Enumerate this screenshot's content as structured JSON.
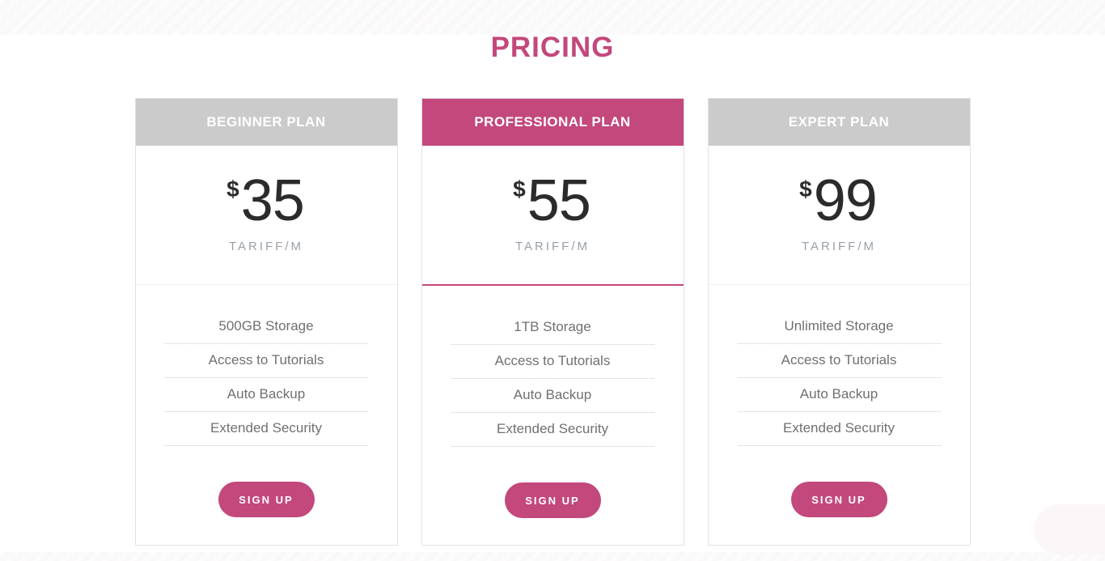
{
  "page": {
    "title": "PRICING",
    "accent_color": "#c3487c",
    "header_gray": "#cbcbcb"
  },
  "plans": [
    {
      "name": "BEGINNER PLAN",
      "currency": "$",
      "price": "35",
      "period": "TARIFF/M",
      "featured": false,
      "features": [
        "500GB Storage",
        "Access to Tutorials",
        "Auto Backup",
        "Extended Security"
      ],
      "cta": "SIGN UP"
    },
    {
      "name": "PROFESSIONAL PLAN",
      "currency": "$",
      "price": "55",
      "period": "TARIFF/M",
      "featured": true,
      "features": [
        "1TB Storage",
        "Access to Tutorials",
        "Auto Backup",
        "Extended Security"
      ],
      "cta": "SIGN UP"
    },
    {
      "name": "EXPERT PLAN",
      "currency": "$",
      "price": "99",
      "period": "TARIFF/M",
      "featured": false,
      "features": [
        "Unlimited Storage",
        "Access to Tutorials",
        "Auto Backup",
        "Extended Security"
      ],
      "cta": "SIGN UP"
    }
  ]
}
